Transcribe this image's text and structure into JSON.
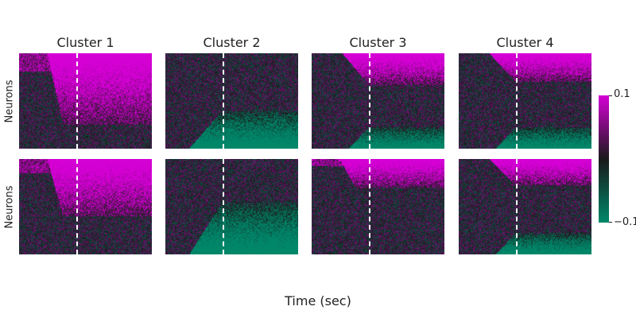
{
  "chart_data": {
    "type": "heatmap",
    "xlabel": "Time (sec)",
    "ylabel": "Neurons",
    "columns": [
      "Cluster 1",
      "Cluster 2",
      "Cluster 3",
      "Cluster 4"
    ],
    "rows": 2,
    "event_marker": "vertical dashed line (stimulus onset)",
    "colorbar": {
      "min": -0.1,
      "max": 0.1,
      "min_label": "−0.1",
      "max_label": "0.1",
      "colors": [
        "#00876a",
        "#1a1a1a",
        "#d400d4"
      ]
    },
    "panels": [
      {
        "row": 1,
        "cluster": "Cluster 1",
        "response": "excited",
        "fraction_responsive": 0.75
      },
      {
        "row": 1,
        "cluster": "Cluster 2",
        "response": "inhibited",
        "fraction_responsive": 0.4
      },
      {
        "row": 1,
        "cluster": "Cluster 3",
        "response": "mixed",
        "fraction_responsive": 0.6
      },
      {
        "row": 1,
        "cluster": "Cluster 4",
        "response": "mixed",
        "fraction_responsive": 0.55
      },
      {
        "row": 2,
        "cluster": "Cluster 1",
        "response": "excited",
        "fraction_responsive": 0.6
      },
      {
        "row": 2,
        "cluster": "Cluster 2",
        "response": "inhibited",
        "fraction_responsive": 0.55
      },
      {
        "row": 2,
        "cluster": "Cluster 3",
        "response": "excited",
        "fraction_responsive": 0.3
      },
      {
        "row": 2,
        "cluster": "Cluster 4",
        "response": "mixed",
        "fraction_responsive": 0.5
      }
    ]
  }
}
